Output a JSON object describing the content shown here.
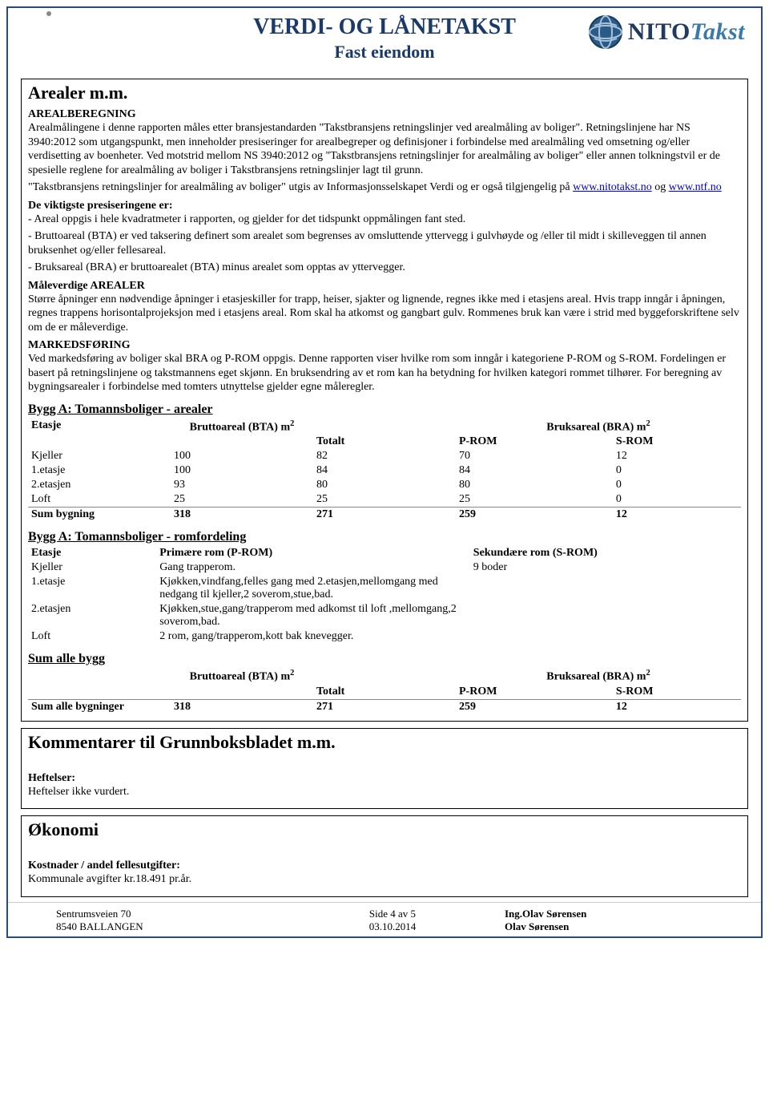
{
  "header": {
    "title_line1": "VERDI- OG LÅNETAKST",
    "title_line2": "Fast eiendom",
    "brand_nito": "NITO",
    "brand_takst": "Takst"
  },
  "arealer": {
    "title": "Arealer m.m.",
    "sub_arealberegning": "AREALBEREGNING",
    "p1": "Arealmålingene i denne rapporten måles etter bransjestandarden \"Takstbransjens retningslinjer ved arealmåling av boliger\". Retningslinjene har NS 3940:2012 som utgangspunkt, men inneholder presiseringer for arealbegreper og definisjoner i forbindelse med arealmåling ved omsetning og/eller verdisetting av boenheter. Ved motstrid mellom NS 3940:2012 og \"Takstbransjens retningslinjer for arealmåling av boliger\" eller annen tolkningstvil er de spesielle reglene for arealmåling av boliger i Takstbransjens retningslinjer lagt til grunn.",
    "p2_pre": "\"Takstbransjens retningslinjer for arealmåling av boliger\" utgis av Informasjonsselskapet Verdi og er også tilgjengelig på ",
    "link1": "www.nitotakst.no",
    "p2_mid": " og ",
    "link2": "www.ntf.no",
    "sub_viktigste": "De viktigste presiseringene er:",
    "b1": "- Areal oppgis i hele kvadratmeter i rapporten, og gjelder for det tidspunkt oppmålingen fant sted.",
    "b2": "- Bruttoareal (BTA) er ved taksering definert som arealet som begrenses av omsluttende yttervegg i gulvhøyde og /eller til midt i skilleveggen til annen bruksenhet og/eller fellesareal.",
    "b3": "- Bruksareal (BRA) er bruttoarealet (BTA) minus arealet som opptas av yttervegger.",
    "sub_maalev": "Måleverdige AREALER",
    "p_maalev": "Større åpninger enn nødvendige åpninger i etasjeskiller for trapp, heiser, sjakter og lignende, regnes ikke med i etasjens areal. Hvis trapp inngår i åpningen, regnes trappens horisontalprojeksjon med i etasjens areal. Rom skal ha atkomst og gangbart gulv. Rommenes bruk kan være i strid med byggeforskriftene selv om de er måleverdige.",
    "sub_marked": "MARKEDSFØRING",
    "p_marked": "Ved markedsføring av boliger skal BRA og P-ROM oppgis. Denne rapporten viser hvilke rom som inngår i kategoriene P-ROM og S-ROM. Fordelingen er basert på retningslinjene og takstmannens eget skjønn. En bruksendring av et rom kan ha betydning for hvilken kategori rommet tilhører. For beregning av bygningsarealer i forbindelse med tomters utnyttelse gjelder egne måleregler."
  },
  "areal_table": {
    "title": "Bygg A: Tomannsboliger - arealer",
    "h_etasje": "Etasje",
    "h_bta": "Bruttoareal (BTA) m",
    "h_bra": "Bruksareal (BRA) m",
    "h_totalt": "Totalt",
    "h_prom": "P-ROM",
    "h_srom": "S-ROM",
    "rows": [
      {
        "etasje": "Kjeller",
        "bta": "100",
        "totalt": "82",
        "prom": "70",
        "srom": "12"
      },
      {
        "etasje": "1.etasje",
        "bta": "100",
        "totalt": "84",
        "prom": "84",
        "srom": "0"
      },
      {
        "etasje": "2.etasjen",
        "bta": "93",
        "totalt": "80",
        "prom": "80",
        "srom": "0"
      },
      {
        "etasje": "Loft",
        "bta": "25",
        "totalt": "25",
        "prom": "25",
        "srom": "0"
      }
    ],
    "sum_label": "Sum bygning",
    "sum": {
      "bta": "318",
      "totalt": "271",
      "prom": "259",
      "srom": "12"
    }
  },
  "rom_table": {
    "title": "Bygg A: Tomannsboliger - romfordeling",
    "h_etasje": "Etasje",
    "h_prom": "Primære rom (P-ROM)",
    "h_srom": "Sekundære rom (S-ROM)",
    "rows": [
      {
        "etasje": "Kjeller",
        "prom": "Gang trapperom.",
        "srom": "9 boder"
      },
      {
        "etasje": "1.etasje",
        "prom": "Kjøkken,vindfang,felles gang med 2.etasjen,mellomgang med nedgang til kjeller,2 soverom,stue,bad.",
        "srom": ""
      },
      {
        "etasje": "2.etasjen",
        "prom": "Kjøkken,stue,gang/trapperom med adkomst til loft ,mellomgang,2 soverom,bad.",
        "srom": ""
      },
      {
        "etasje": "Loft",
        "prom": "2 rom, gang/trapperom,kott bak knevegger.",
        "srom": ""
      }
    ]
  },
  "sum_alle": {
    "title": "Sum alle bygg",
    "h_bta": "Bruttoareal (BTA) m",
    "h_bra": "Bruksareal (BRA) m",
    "h_totalt": "Totalt",
    "h_prom": "P-ROM",
    "h_srom": "S-ROM",
    "label": "Sum alle bygninger",
    "bta": "318",
    "totalt": "271",
    "prom": "259",
    "srom": "12"
  },
  "kommentarer": {
    "title": "Kommentarer til Grunnboksbladet m.m.",
    "h_heftelser": "Heftelser:",
    "p_heftelser": "Heftelser ikke vurdert."
  },
  "okonomi": {
    "title": "Økonomi",
    "h_kost": "Kostnader / andel fellesutgifter:",
    "p_kost": "Kommunale avgifter kr.18.491 pr.år."
  },
  "footer": {
    "addr1": "Sentrumsveien 70",
    "addr2": "8540 BALLANGEN",
    "page": "Side 4 av 5",
    "date": "03.10.2014",
    "name1": "Ing.Olav Sørensen",
    "name2": "Olav Sørensen"
  }
}
